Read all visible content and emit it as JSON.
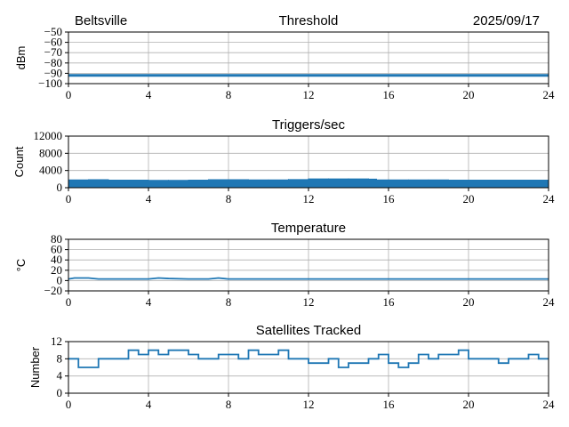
{
  "header": {
    "left": "Beltsville",
    "right": "2025/09/17"
  },
  "colors": {
    "series": "#1f77b4",
    "grid": "#b0b0b0"
  },
  "chart_data": [
    {
      "type": "line",
      "title": "Threshold",
      "ylabel": "dBm",
      "xlim": [
        0,
        24
      ],
      "ylim": [
        -100,
        -50
      ],
      "xticks": [
        0,
        4,
        8,
        12,
        16,
        20,
        24
      ],
      "yticks": [
        -100,
        -90,
        -80,
        -70,
        -60,
        -50
      ],
      "ytick_labels": [
        "−100",
        "−90",
        "−80",
        "−70",
        "−60",
        "−50"
      ],
      "grid": true,
      "x": [
        0,
        24
      ],
      "values": [
        -92,
        -92
      ]
    },
    {
      "type": "area",
      "title": "Triggers/sec",
      "ylabel": "Count",
      "xlim": [
        0,
        24
      ],
      "ylim": [
        0,
        12000
      ],
      "xticks": [
        0,
        4,
        8,
        12,
        16,
        20,
        24
      ],
      "yticks": [
        0,
        4000,
        8000,
        12000
      ],
      "ytick_labels": [
        "0",
        "4000",
        "8000",
        "12000"
      ],
      "grid": true,
      "x": [
        0,
        1,
        2,
        3,
        4,
        5,
        6,
        7,
        8,
        9,
        10,
        11,
        12,
        13,
        14,
        15,
        15.4,
        16,
        17,
        18,
        19,
        20,
        21,
        22,
        23,
        24
      ],
      "values": [
        1800,
        1850,
        1750,
        1750,
        1700,
        1700,
        1750,
        1850,
        1850,
        1800,
        1800,
        1900,
        2050,
        2050,
        2050,
        2000,
        1800,
        1800,
        1800,
        1800,
        1750,
        1750,
        1750,
        1750,
        1750,
        1750
      ]
    },
    {
      "type": "line",
      "title": "Temperature",
      "ylabel": "°C",
      "xlim": [
        0,
        24
      ],
      "ylim": [
        -20,
        80
      ],
      "xticks": [
        0,
        4,
        8,
        12,
        16,
        20,
        24
      ],
      "yticks": [
        -20,
        0,
        20,
        40,
        60,
        80
      ],
      "ytick_labels": [
        "−20",
        "0",
        "20",
        "40",
        "60",
        "80"
      ],
      "grid": true,
      "x": [
        0,
        0.3,
        1,
        1.5,
        2,
        3,
        4,
        4.5,
        5,
        6,
        7,
        7.5,
        8,
        12,
        16,
        20,
        24
      ],
      "values": [
        3,
        5,
        5,
        3,
        3,
        3,
        3,
        5,
        4,
        3,
        3,
        5,
        3,
        3,
        3,
        3,
        3
      ]
    },
    {
      "type": "line",
      "title": "Satellites Tracked",
      "ylabel": "Number",
      "xlim": [
        0,
        24
      ],
      "ylim": [
        0,
        12
      ],
      "xticks": [
        0,
        4,
        8,
        12,
        16,
        20,
        24
      ],
      "yticks": [
        0,
        4,
        8,
        12
      ],
      "ytick_labels": [
        "0",
        "4",
        "8",
        "12"
      ],
      "grid": true,
      "x": [
        0,
        0.5,
        1,
        1.5,
        2,
        2.5,
        3,
        3.5,
        4,
        4.5,
        5,
        5.5,
        6,
        6.5,
        7,
        7.5,
        8,
        8.5,
        9,
        9.5,
        10,
        10.5,
        11,
        11.5,
        12,
        12.5,
        13,
        13.5,
        14,
        14.5,
        15,
        15.5,
        16,
        16.5,
        17,
        17.5,
        18,
        18.5,
        19,
        19.5,
        20,
        20.5,
        21,
        21.5,
        22,
        22.5,
        23,
        23.5,
        24
      ],
      "values": [
        8,
        6,
        6,
        8,
        8,
        8,
        10,
        9,
        10,
        9,
        10,
        10,
        9,
        8,
        8,
        9,
        9,
        8,
        10,
        9,
        9,
        10,
        8,
        8,
        7,
        7,
        8,
        6,
        7,
        7,
        8,
        9,
        7,
        6,
        7,
        9,
        8,
        9,
        9,
        10,
        8,
        8,
        8,
        7,
        8,
        8,
        9,
        8,
        8
      ]
    }
  ]
}
